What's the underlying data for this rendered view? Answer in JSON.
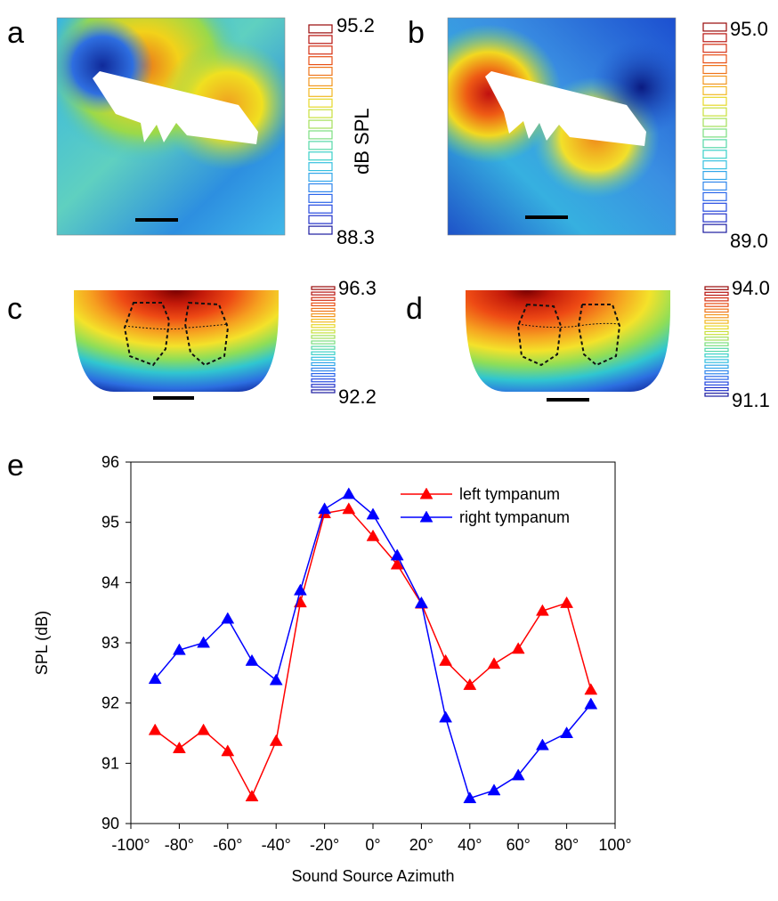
{
  "panels": {
    "a": {
      "letter": "a",
      "colorbar_max": "95.2",
      "colorbar_min": "88.3",
      "colorbar_label": "dB  SPL"
    },
    "b": {
      "letter": "b",
      "colorbar_max": "95.0",
      "colorbar_min": "89.0"
    },
    "c": {
      "letter": "c",
      "colorbar_max": "96.3",
      "colorbar_min": "92.2"
    },
    "d": {
      "letter": "d",
      "colorbar_max": "94.0",
      "colorbar_min": "91.1"
    },
    "e": {
      "letter": "e"
    }
  },
  "chart_data": {
    "type": "line",
    "xlabel": "Sound Source Azimuth",
    "ylabel": "SPL  (dB)",
    "xlim": [
      -100,
      100
    ],
    "ylim": [
      90,
      96
    ],
    "x_ticks": [
      "-100°",
      "-80°",
      "-60°",
      "-40°",
      "-20°",
      "0°",
      "20°",
      "40°",
      "60°",
      "80°",
      "100°"
    ],
    "y_ticks": [
      "90",
      "91",
      "92",
      "93",
      "94",
      "95",
      "96"
    ],
    "legend_position": "top-right",
    "x": [
      -90,
      -80,
      -70,
      -60,
      -50,
      -40,
      -30,
      -20,
      -10,
      0,
      10,
      20,
      30,
      40,
      50,
      60,
      70,
      80,
      90
    ],
    "series": [
      {
        "name": "left tympanum",
        "color": "#ff0000",
        "values": [
          91.55,
          91.25,
          91.55,
          91.2,
          90.45,
          91.37,
          93.67,
          95.15,
          95.22,
          94.77,
          94.3,
          93.65,
          92.7,
          92.3,
          92.65,
          92.9,
          93.53,
          93.66,
          92.22
        ]
      },
      {
        "name": "right tympanum",
        "color": "#0000ff",
        "values": [
          92.4,
          92.88,
          93.0,
          93.4,
          92.7,
          92.38,
          93.87,
          95.22,
          95.47,
          95.13,
          94.45,
          93.66,
          91.76,
          90.42,
          90.55,
          90.8,
          91.3,
          91.5,
          91.98
        ]
      }
    ]
  }
}
